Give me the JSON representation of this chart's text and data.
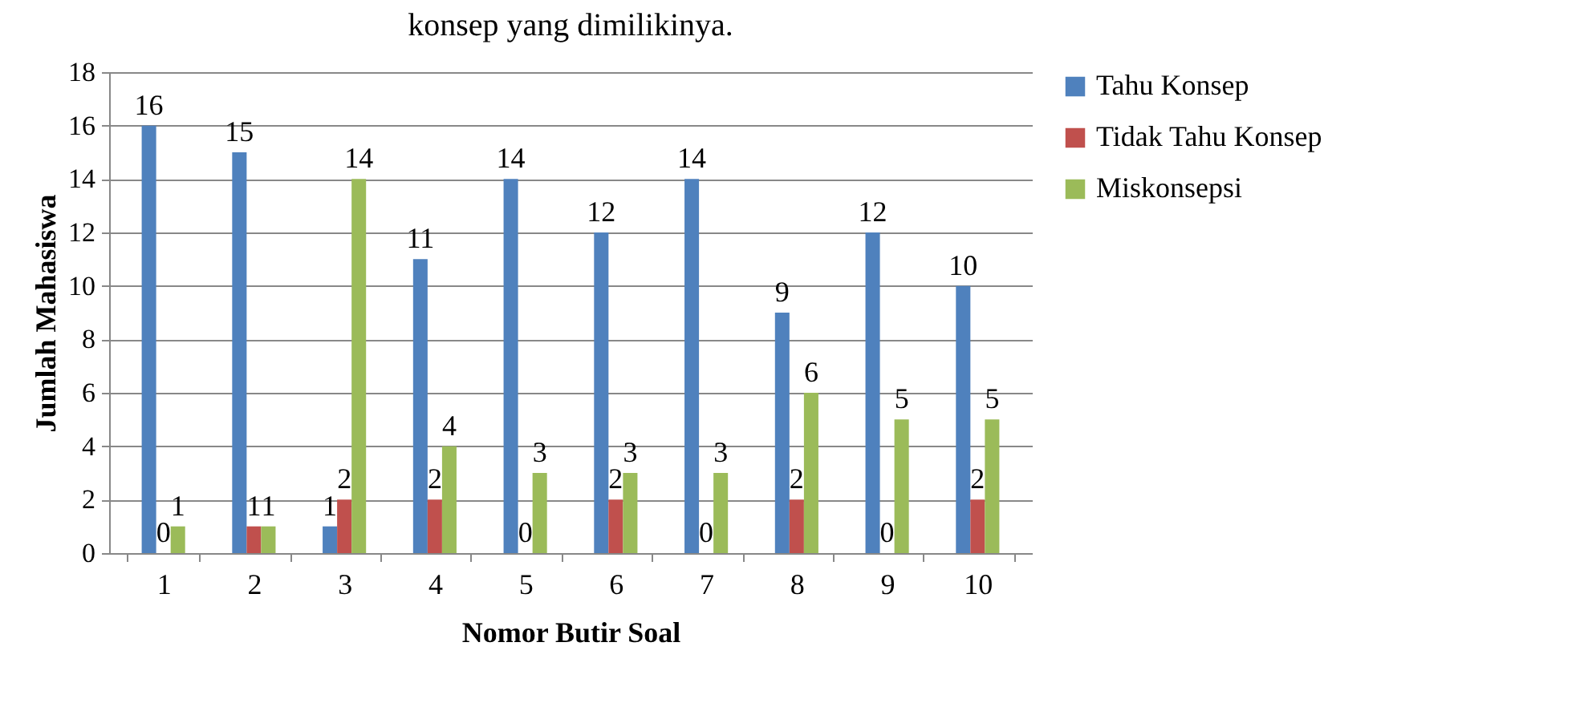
{
  "chart_data": {
    "type": "bar",
    "title": "konsep yang dimilikinya.",
    "xlabel": "Nomor Butir Soal",
    "ylabel": "Jumlah Mahasiswa",
    "categories": [
      "1",
      "2",
      "3",
      "4",
      "5",
      "6",
      "7",
      "8",
      "9",
      "10"
    ],
    "series": [
      {
        "name": "Tahu Konsep",
        "color": "#4f81bd",
        "values": [
          16,
          15,
          1,
          11,
          14,
          12,
          14,
          9,
          12,
          10
        ]
      },
      {
        "name": "Tidak Tahu Konsep",
        "color": "#c0504d",
        "values": [
          0,
          1,
          2,
          2,
          0,
          2,
          0,
          2,
          0,
          2
        ]
      },
      {
        "name": "Miskonsepsi",
        "color": "#9bbb59",
        "values": [
          1,
          1,
          14,
          4,
          3,
          3,
          3,
          6,
          5,
          5
        ]
      }
    ],
    "ylim": [
      0,
      18
    ],
    "yticks": [
      0,
      2,
      4,
      6,
      8,
      10,
      12,
      14,
      16,
      18
    ],
    "grid": "y",
    "legend": "right",
    "data_labels": true
  }
}
